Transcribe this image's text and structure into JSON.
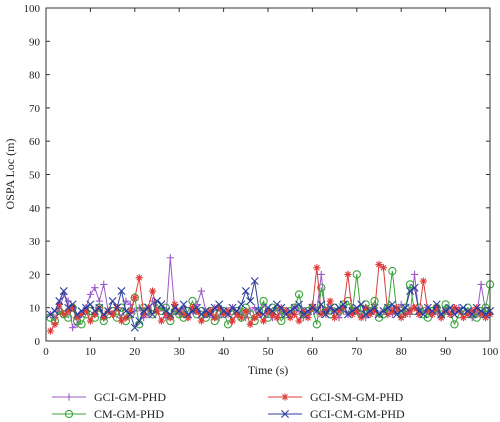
{
  "chart_data": {
    "type": "line",
    "title": "",
    "xlabel": "Time (s)",
    "ylabel": "OSPA Loc (m)",
    "xlim": [
      0,
      100
    ],
    "ylim": [
      0,
      100
    ],
    "x_ticks": [
      0,
      10,
      20,
      30,
      40,
      50,
      60,
      70,
      80,
      90,
      100
    ],
    "y_ticks": [
      0,
      10,
      20,
      30,
      40,
      50,
      60,
      70,
      80,
      90,
      100
    ],
    "grid": false,
    "legend_position": "bottom",
    "series": [
      {
        "name": "GCI-GM-PHD",
        "color": "#9b59c6",
        "marker": "plus",
        "values": [
          8,
          7,
          9,
          14,
          12,
          4,
          5,
          8,
          10,
          14,
          16,
          12,
          17,
          9,
          8,
          10,
          7,
          12,
          11,
          9,
          10,
          7,
          8,
          12,
          9,
          10,
          7,
          25,
          9,
          8,
          10,
          7,
          9,
          11,
          15,
          9,
          8,
          10,
          7,
          9,
          8,
          10,
          8,
          9,
          7,
          9,
          10,
          8,
          11,
          9,
          7,
          10,
          8,
          9,
          8,
          10,
          9,
          7,
          8,
          11,
          9,
          20,
          8,
          10,
          9,
          7,
          9,
          8,
          10,
          9,
          8,
          7,
          9,
          10,
          8,
          9,
          10,
          8,
          9,
          11,
          9,
          8,
          20,
          8,
          9,
          10,
          8,
          9,
          7,
          10,
          8,
          9,
          10,
          8,
          9,
          7,
          8,
          17,
          9,
          8
        ]
      },
      {
        "name": "CM-GM-PHD",
        "color": "#3aa53a",
        "marker": "circle",
        "values": [
          7,
          6,
          9,
          8,
          7,
          10,
          6,
          5,
          8,
          9,
          7,
          10,
          6,
          8,
          9,
          7,
          10,
          6,
          8,
          13,
          5,
          10,
          9,
          8,
          11,
          9,
          10,
          6,
          9,
          8,
          7,
          9,
          12,
          8,
          9,
          7,
          9,
          6,
          8,
          9,
          5,
          8,
          9,
          7,
          10,
          8,
          6,
          9,
          12,
          7,
          10,
          9,
          6,
          8,
          9,
          10,
          14,
          8,
          9,
          10,
          5,
          16,
          9,
          8,
          10,
          9,
          11,
          12,
          9,
          20,
          8,
          11,
          9,
          12,
          7,
          8,
          10,
          21,
          9,
          8,
          10,
          17,
          9,
          10,
          8,
          7,
          9,
          10,
          8,
          11,
          9,
          5,
          8,
          9,
          10,
          8,
          7,
          9,
          10,
          17
        ]
      },
      {
        "name": "GCI-SM-GM-PHD",
        "color": "#e03a3a",
        "marker": "asterisk",
        "values": [
          3,
          5,
          11,
          8,
          9,
          10,
          7,
          8,
          9,
          6,
          8,
          10,
          7,
          9,
          8,
          10,
          6,
          7,
          9,
          13,
          19,
          8,
          10,
          15,
          9,
          6,
          8,
          7,
          11,
          9,
          8,
          7,
          10,
          9,
          6,
          8,
          9,
          7,
          10,
          8,
          9,
          6,
          8,
          7,
          9,
          5,
          7,
          8,
          6,
          9,
          8,
          7,
          10,
          9,
          7,
          8,
          6,
          9,
          7,
          10,
          22,
          8,
          9,
          12,
          7,
          9,
          10,
          20,
          8,
          9,
          7,
          10,
          8,
          9,
          23,
          22,
          8,
          9,
          10,
          7,
          8,
          9,
          10,
          8,
          18,
          9,
          8,
          10,
          7,
          9,
          8,
          10,
          9,
          7,
          8,
          9,
          10,
          8,
          7,
          8
        ]
      },
      {
        "name": "GCI-CM-GM-PHD",
        "color": "#2a3f9e",
        "marker": "cross",
        "values": [
          8,
          9,
          12,
          15,
          10,
          11,
          8,
          9,
          10,
          11,
          9,
          10,
          8,
          9,
          12,
          10,
          15,
          9,
          8,
          4,
          6,
          9,
          10,
          8,
          12,
          11,
          9,
          8,
          10,
          9,
          11,
          8,
          9,
          10,
          8,
          9,
          8,
          10,
          11,
          9,
          8,
          10,
          9,
          11,
          15,
          12,
          18,
          9,
          8,
          10,
          9,
          11,
          10,
          8,
          9,
          10,
          11,
          8,
          9,
          10,
          9,
          11,
          8,
          10,
          9,
          10,
          11,
          8,
          9,
          10,
          11,
          8,
          9,
          10,
          8,
          9,
          10,
          11,
          8,
          9,
          10,
          15,
          16,
          9,
          8,
          10,
          9,
          11,
          8,
          9,
          10,
          8,
          9,
          10,
          9,
          8,
          10,
          9,
          8,
          9
        ]
      }
    ]
  }
}
